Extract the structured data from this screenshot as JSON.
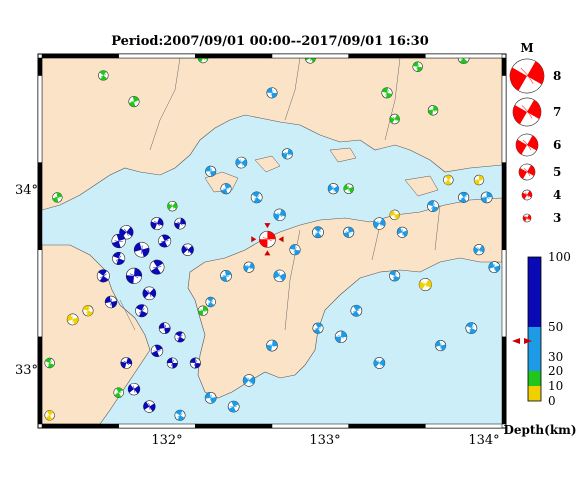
{
  "title": "Period:2007/09/01 00:00--2017/09/01 16:30",
  "lon_ticks": [
    "132°",
    "133°",
    "134°"
  ],
  "lat_ticks": [
    "34°",
    "33°"
  ],
  "magnitude_legend": {
    "title": "M",
    "entries": [
      "8",
      "7",
      "6",
      "5",
      "4",
      "3"
    ]
  },
  "depth_scale": {
    "title": "Depth(km)",
    "ticks": [
      "100",
      "50",
      "30",
      "20",
      "10",
      "0"
    ],
    "colors": {
      "deep": "#0a0ab4",
      "mid": "#1e9be6",
      "shallow_green": "#21c51c",
      "surface_yellow": "#f0d000"
    }
  },
  "colors": {
    "sea": "#cceef8",
    "land": "#fbe3c7",
    "main_event": "#ff0000",
    "marker": "#cc0000"
  },
  "chart_data": {
    "type": "map",
    "extent": {
      "lon": [
        131.2,
        134.2
      ],
      "lat": [
        32.7,
        34.8
      ]
    },
    "events": [
      {
        "lon": 132.67,
        "lat": 33.76,
        "mag": 4.6,
        "depth": 40,
        "main": true
      },
      {
        "lon": 131.75,
        "lat": 33.8,
        "mag": 4.2,
        "depth": 80
      },
      {
        "lon": 131.85,
        "lat": 33.7,
        "mag": 4.4,
        "depth": 85
      },
      {
        "lon": 131.7,
        "lat": 33.65,
        "mag": 4.0,
        "depth": 70
      },
      {
        "lon": 131.95,
        "lat": 33.6,
        "mag": 4.3,
        "depth": 90
      },
      {
        "lon": 131.8,
        "lat": 33.55,
        "mag": 4.5,
        "depth": 88
      },
      {
        "lon": 131.9,
        "lat": 33.45,
        "mag": 4.1,
        "depth": 75
      },
      {
        "lon": 131.65,
        "lat": 33.4,
        "mag": 3.9,
        "depth": 85
      },
      {
        "lon": 131.85,
        "lat": 33.35,
        "mag": 4.0,
        "depth": 80
      },
      {
        "lon": 132.0,
        "lat": 33.75,
        "mag": 4.0,
        "depth": 78
      },
      {
        "lon": 132.1,
        "lat": 33.85,
        "mag": 3.8,
        "depth": 85
      },
      {
        "lon": 132.15,
        "lat": 33.7,
        "mag": 3.9,
        "depth": 70
      },
      {
        "lon": 132.0,
        "lat": 33.25,
        "mag": 3.8,
        "depth": 75
      },
      {
        "lon": 132.1,
        "lat": 33.2,
        "mag": 3.7,
        "depth": 80
      },
      {
        "lon": 131.95,
        "lat": 33.12,
        "mag": 3.9,
        "depth": 90
      },
      {
        "lon": 131.75,
        "lat": 33.05,
        "mag": 3.8,
        "depth": 80
      },
      {
        "lon": 131.8,
        "lat": 32.9,
        "mag": 3.9,
        "depth": 85
      },
      {
        "lon": 132.05,
        "lat": 33.05,
        "mag": 3.7,
        "depth": 78
      },
      {
        "lon": 131.6,
        "lat": 33.55,
        "mag": 4.0,
        "depth": 82
      },
      {
        "lon": 131.7,
        "lat": 33.75,
        "mag": 4.2,
        "depth": 88
      },
      {
        "lon": 131.95,
        "lat": 33.85,
        "mag": 4.0,
        "depth": 80
      },
      {
        "lon": 131.9,
        "lat": 32.8,
        "mag": 3.9,
        "depth": 85
      },
      {
        "lon": 132.2,
        "lat": 33.05,
        "mag": 3.7,
        "depth": 70
      },
      {
        "lon": 132.3,
        "lat": 33.4,
        "mag": 3.6,
        "depth": 40
      },
      {
        "lon": 132.4,
        "lat": 33.55,
        "mag": 3.8,
        "depth": 42
      },
      {
        "lon": 132.55,
        "lat": 33.6,
        "mag": 3.7,
        "depth": 38
      },
      {
        "lon": 132.75,
        "lat": 33.55,
        "mag": 3.9,
        "depth": 45
      },
      {
        "lon": 132.85,
        "lat": 33.7,
        "mag": 3.7,
        "depth": 40
      },
      {
        "lon": 133.0,
        "lat": 33.8,
        "mag": 3.8,
        "depth": 42
      },
      {
        "lon": 133.2,
        "lat": 33.8,
        "mag": 3.7,
        "depth": 38
      },
      {
        "lon": 133.4,
        "lat": 33.85,
        "mag": 3.9,
        "depth": 40
      },
      {
        "lon": 133.55,
        "lat": 33.8,
        "mag": 3.7,
        "depth": 45
      },
      {
        "lon": 133.75,
        "lat": 33.95,
        "mag": 3.8,
        "depth": 40
      },
      {
        "lon": 133.95,
        "lat": 34.0,
        "mag": 3.7,
        "depth": 38
      },
      {
        "lon": 134.1,
        "lat": 34.0,
        "mag": 3.8,
        "depth": 40
      },
      {
        "lon": 134.05,
        "lat": 33.7,
        "mag": 3.7,
        "depth": 45
      },
      {
        "lon": 134.15,
        "lat": 33.6,
        "mag": 3.8,
        "depth": 40
      },
      {
        "lon": 133.5,
        "lat": 33.55,
        "mag": 3.7,
        "depth": 40
      },
      {
        "lon": 133.25,
        "lat": 33.35,
        "mag": 3.8,
        "depth": 42
      },
      {
        "lon": 133.15,
        "lat": 33.2,
        "mag": 3.9,
        "depth": 40
      },
      {
        "lon": 133.4,
        "lat": 33.05,
        "mag": 3.8,
        "depth": 40
      },
      {
        "lon": 133.8,
        "lat": 33.15,
        "mag": 3.7,
        "depth": 45
      },
      {
        "lon": 134.0,
        "lat": 33.25,
        "mag": 3.8,
        "depth": 40
      },
      {
        "lon": 133.0,
        "lat": 33.25,
        "mag": 3.7,
        "depth": 40
      },
      {
        "lon": 132.7,
        "lat": 33.15,
        "mag": 3.8,
        "depth": 42
      },
      {
        "lon": 132.55,
        "lat": 32.95,
        "mag": 3.9,
        "depth": 40
      },
      {
        "lon": 132.3,
        "lat": 32.85,
        "mag": 3.8,
        "depth": 40
      },
      {
        "lon": 132.1,
        "lat": 32.75,
        "mag": 3.7,
        "depth": 42
      },
      {
        "lon": 132.45,
        "lat": 32.8,
        "mag": 3.8,
        "depth": 40
      },
      {
        "lon": 132.8,
        "lat": 34.25,
        "mag": 3.7,
        "depth": 40
      },
      {
        "lon": 132.5,
        "lat": 34.2,
        "mag": 3.8,
        "depth": 42
      },
      {
        "lon": 132.3,
        "lat": 34.15,
        "mag": 3.7,
        "depth": 40
      },
      {
        "lon": 132.6,
        "lat": 34.0,
        "mag": 3.8,
        "depth": 45
      },
      {
        "lon": 132.4,
        "lat": 34.05,
        "mag": 3.7,
        "depth": 40
      },
      {
        "lon": 132.75,
        "lat": 33.9,
        "mag": 3.9,
        "depth": 42
      },
      {
        "lon": 133.1,
        "lat": 34.05,
        "mag": 3.7,
        "depth": 40
      },
      {
        "lon": 132.7,
        "lat": 34.6,
        "mag": 3.7,
        "depth": 40
      },
      {
        "lon": 131.6,
        "lat": 34.7,
        "mag": 3.6,
        "depth": 15
      },
      {
        "lon": 131.8,
        "lat": 34.55,
        "mag": 3.7,
        "depth": 15
      },
      {
        "lon": 132.25,
        "lat": 34.8,
        "mag": 3.6,
        "depth": 15
      },
      {
        "lon": 132.95,
        "lat": 34.8,
        "mag": 3.7,
        "depth": 15
      },
      {
        "lon": 133.65,
        "lat": 34.75,
        "mag": 3.6,
        "depth": 15
      },
      {
        "lon": 133.95,
        "lat": 34.8,
        "mag": 3.8,
        "depth": 15
      },
      {
        "lon": 131.3,
        "lat": 34.0,
        "mag": 3.6,
        "depth": 15
      },
      {
        "lon": 133.5,
        "lat": 34.45,
        "mag": 3.6,
        "depth": 15
      },
      {
        "lon": 133.2,
        "lat": 34.05,
        "mag": 3.6,
        "depth": 15
      },
      {
        "lon": 133.45,
        "lat": 34.6,
        "mag": 3.7,
        "depth": 15
      },
      {
        "lon": 133.85,
        "lat": 34.1,
        "mag": 3.6,
        "depth": 5
      },
      {
        "lon": 134.05,
        "lat": 34.1,
        "mag": 3.6,
        "depth": 5
      },
      {
        "lon": 133.7,
        "lat": 33.5,
        "mag": 4.0,
        "depth": 5
      },
      {
        "lon": 131.4,
        "lat": 33.3,
        "mag": 3.8,
        "depth": 5
      },
      {
        "lon": 131.5,
        "lat": 33.35,
        "mag": 3.7,
        "depth": 5
      },
      {
        "lon": 131.25,
        "lat": 32.75,
        "mag": 3.6,
        "depth": 5
      },
      {
        "lon": 132.25,
        "lat": 33.35,
        "mag": 3.6,
        "depth": 15
      },
      {
        "lon": 132.05,
        "lat": 33.95,
        "mag": 3.6,
        "depth": 15
      },
      {
        "lon": 133.5,
        "lat": 33.9,
        "mag": 3.6,
        "depth": 5
      },
      {
        "lon": 131.25,
        "lat": 33.05,
        "mag": 3.6,
        "depth": 15
      },
      {
        "lon": 131.7,
        "lat": 32.88,
        "mag": 3.6,
        "depth": 15
      },
      {
        "lon": 133.75,
        "lat": 34.5,
        "mag": 3.6,
        "depth": 15
      }
    ]
  }
}
